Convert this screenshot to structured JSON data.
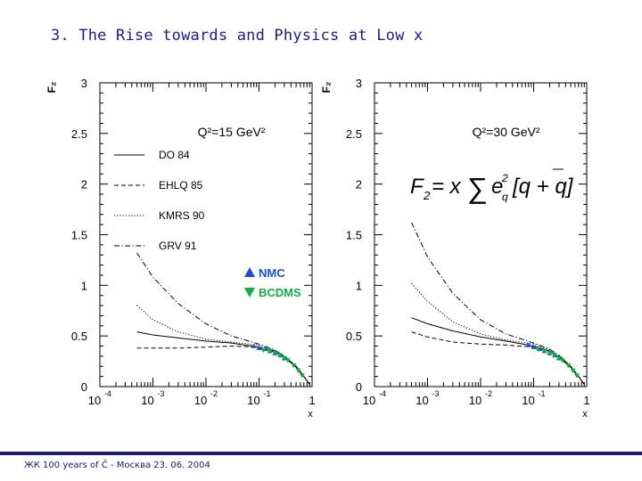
{
  "slide": {
    "title": "3. The Rise towards and Physics at Low x",
    "footer": "ЖК 100 years of Č - Москва 23. 06. 2004"
  },
  "colors": {
    "title": "#1a1a8a",
    "footer_rule": "#1c1c78",
    "nmc": "#1a4fd0",
    "bcdms": "#10b040",
    "axis": "#000000"
  },
  "chart_data": [
    {
      "type": "line",
      "ylabel": "F₂",
      "xlabel": "x",
      "x_scale": "log",
      "xlim": [
        0.0001,
        1
      ],
      "ylim": [
        0,
        3
      ],
      "x_ticks": [
        {
          "base": "10",
          "exp": "-4"
        },
        {
          "base": "10",
          "exp": "-3"
        },
        {
          "base": "10",
          "exp": "-2"
        },
        {
          "base": "10",
          "exp": "-1"
        },
        {
          "base": "1",
          "exp": ""
        }
      ],
      "y_ticks": [
        "0",
        "0.5",
        "1",
        "1.5",
        "2",
        "2.5",
        "3"
      ],
      "annotation": "Q²=15 GeV²",
      "legend": {
        "placement": "left-middle",
        "entries": [
          "DO 84",
          "EHLQ 85",
          "KMRS 90",
          "GRV 91"
        ]
      },
      "marker_legend": {
        "placement": "right-middle",
        "entries": [
          {
            "label": "NMC",
            "symbol": "triangle-up",
            "color": "#1a4fd0"
          },
          {
            "label": "BCDMS",
            "symbol": "triangle-down",
            "color": "#10b040"
          }
        ]
      },
      "series": [
        {
          "name": "DO 84",
          "style": "solid",
          "x": [
            0.0005,
            0.001,
            0.003,
            0.01,
            0.03,
            0.1,
            0.2,
            0.3,
            0.5,
            0.7,
            0.9
          ],
          "y": [
            0.54,
            0.51,
            0.48,
            0.45,
            0.43,
            0.39,
            0.34,
            0.29,
            0.19,
            0.1,
            0.02
          ]
        },
        {
          "name": "EHLQ 85",
          "style": "dashed",
          "x": [
            0.0005,
            0.001,
            0.003,
            0.01,
            0.03,
            0.1,
            0.2,
            0.3,
            0.5,
            0.7,
            0.9
          ],
          "y": [
            0.38,
            0.38,
            0.38,
            0.39,
            0.4,
            0.39,
            0.35,
            0.3,
            0.2,
            0.1,
            0.02
          ]
        },
        {
          "name": "KMRS 90",
          "style": "dotted",
          "x": [
            0.0005,
            0.001,
            0.003,
            0.01,
            0.03,
            0.1,
            0.2,
            0.3,
            0.5,
            0.7,
            0.9
          ],
          "y": [
            0.8,
            0.66,
            0.54,
            0.47,
            0.44,
            0.41,
            0.36,
            0.3,
            0.2,
            0.1,
            0.02
          ]
        },
        {
          "name": "GRV 91",
          "style": "dashdot",
          "x": [
            0.0005,
            0.001,
            0.003,
            0.01,
            0.03,
            0.1,
            0.2,
            0.3,
            0.5,
            0.7,
            0.9
          ],
          "y": [
            1.32,
            1.08,
            0.82,
            0.62,
            0.5,
            0.42,
            0.36,
            0.3,
            0.2,
            0.1,
            0.02
          ]
        },
        {
          "name": "NMC",
          "style": "marker-up",
          "x": [
            0.08,
            0.1,
            0.13,
            0.16,
            0.2,
            0.25,
            0.3
          ],
          "y": [
            0.4,
            0.38,
            0.37,
            0.35,
            0.33,
            0.31,
            0.28
          ]
        },
        {
          "name": "BCDMS",
          "style": "marker-down",
          "x": [
            0.12,
            0.16,
            0.2,
            0.25,
            0.3,
            0.35,
            0.45,
            0.55,
            0.65
          ],
          "y": [
            0.36,
            0.35,
            0.33,
            0.31,
            0.28,
            0.26,
            0.21,
            0.16,
            0.11
          ]
        }
      ]
    },
    {
      "type": "line",
      "ylabel": "F₂",
      "xlabel": "x",
      "x_scale": "log",
      "xlim": [
        0.0001,
        1
      ],
      "ylim": [
        0,
        3
      ],
      "x_ticks": [
        {
          "base": "10",
          "exp": "-4"
        },
        {
          "base": "10",
          "exp": "-3"
        },
        {
          "base": "10",
          "exp": "-2"
        },
        {
          "base": "10",
          "exp": "-1"
        },
        {
          "base": "1",
          "exp": ""
        }
      ],
      "y_ticks": [
        "0",
        "0.5",
        "1",
        "1.5",
        "2",
        "2.5",
        "3"
      ],
      "annotation": "Q²=30 GeV²",
      "formula": {
        "lhs": "F",
        "lhs_sub": "2",
        "eq": " = x",
        "sum": "∑",
        "e": "e",
        "e_sup": "2",
        "e_sub": "q",
        "bracket": "[q + q]"
      },
      "series": [
        {
          "name": "DO 84",
          "style": "solid",
          "x": [
            0.0005,
            0.001,
            0.003,
            0.01,
            0.03,
            0.1,
            0.2,
            0.3,
            0.5,
            0.7,
            0.9
          ],
          "y": [
            0.68,
            0.62,
            0.55,
            0.49,
            0.45,
            0.4,
            0.35,
            0.29,
            0.19,
            0.1,
            0.02
          ]
        },
        {
          "name": "EHLQ 85",
          "style": "dashed",
          "x": [
            0.0005,
            0.001,
            0.003,
            0.01,
            0.03,
            0.1,
            0.2,
            0.3,
            0.5,
            0.7,
            0.9
          ],
          "y": [
            0.54,
            0.49,
            0.44,
            0.42,
            0.41,
            0.39,
            0.35,
            0.3,
            0.2,
            0.1,
            0.02
          ]
        },
        {
          "name": "KMRS 90",
          "style": "dotted",
          "x": [
            0.0005,
            0.001,
            0.003,
            0.01,
            0.03,
            0.1,
            0.2,
            0.3,
            0.5,
            0.7,
            0.9
          ],
          "y": [
            1.02,
            0.84,
            0.64,
            0.52,
            0.46,
            0.42,
            0.36,
            0.3,
            0.2,
            0.1,
            0.02
          ]
        },
        {
          "name": "GRV 91",
          "style": "dashdot",
          "x": [
            0.0005,
            0.001,
            0.003,
            0.01,
            0.03,
            0.1,
            0.2,
            0.3,
            0.5,
            0.7,
            0.9
          ],
          "y": [
            1.62,
            1.28,
            0.92,
            0.66,
            0.52,
            0.43,
            0.37,
            0.31,
            0.2,
            0.1,
            0.02
          ]
        },
        {
          "name": "NMC",
          "style": "marker-up",
          "x": [
            0.08,
            0.1,
            0.13,
            0.16,
            0.2,
            0.25,
            0.3
          ],
          "y": [
            0.41,
            0.39,
            0.37,
            0.35,
            0.33,
            0.31,
            0.28
          ]
        },
        {
          "name": "BCDMS",
          "style": "marker-down",
          "x": [
            0.12,
            0.16,
            0.2,
            0.25,
            0.3,
            0.35,
            0.45,
            0.55,
            0.65
          ],
          "y": [
            0.37,
            0.35,
            0.33,
            0.31,
            0.28,
            0.26,
            0.21,
            0.16,
            0.11
          ]
        }
      ]
    }
  ]
}
